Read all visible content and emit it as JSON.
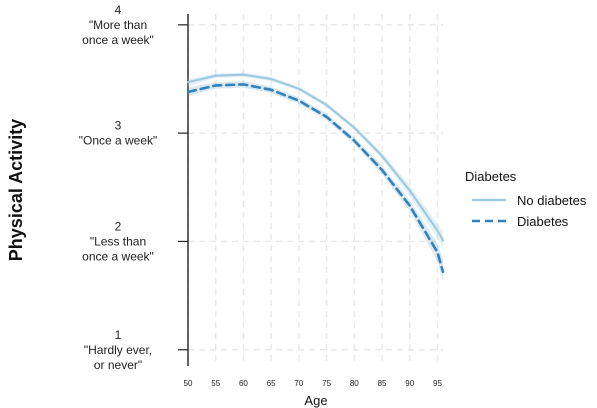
{
  "chart_data": {
    "type": "line",
    "xlabel": "Age",
    "ylabel": "Physical Activity",
    "xlim": [
      50,
      96
    ],
    "ylim": [
      0.85,
      4.1
    ],
    "grid": true,
    "legend_placement": "right",
    "x_ticks": [
      50,
      55,
      60,
      65,
      70,
      75,
      80,
      85,
      90,
      95
    ],
    "x_tick_labels": [
      "50",
      "55",
      "60",
      "65",
      "70",
      "75",
      "80",
      "85",
      "90",
      "95"
    ],
    "y_ticks": [
      {
        "value": 4,
        "lines": [
          "4",
          "\"More than",
          "once a week\""
        ]
      },
      {
        "value": 3,
        "lines": [
          "3",
          "\"Once a week\""
        ]
      },
      {
        "value": 2,
        "lines": [
          "2",
          "\"Less than",
          "once a week\""
        ]
      },
      {
        "value": 1,
        "lines": [
          "1",
          "\"Hardly ever,",
          "or never\""
        ]
      }
    ],
    "legend_title": "Diabetes",
    "series": [
      {
        "name": "No diabetes",
        "style": "solid",
        "color": "#9ecae1",
        "x": [
          50,
          55,
          60,
          65,
          70,
          75,
          80,
          85,
          90,
          95,
          96
        ],
        "y": [
          3.47,
          3.53,
          3.54,
          3.5,
          3.41,
          3.26,
          3.05,
          2.79,
          2.47,
          2.1,
          2.01
        ],
        "band_upper": [
          3.5,
          3.55,
          3.56,
          3.52,
          3.43,
          3.28,
          3.07,
          2.82,
          2.52,
          2.17,
          2.09
        ],
        "band_lower": [
          3.43,
          3.51,
          3.52,
          3.48,
          3.39,
          3.24,
          3.03,
          2.76,
          2.42,
          2.03,
          1.93
        ]
      },
      {
        "name": "Diabetes",
        "style": "dashed",
        "color": "#3182bd",
        "x": [
          50,
          55,
          60,
          65,
          70,
          75,
          80,
          85,
          90,
          95,
          96
        ],
        "y": [
          3.38,
          3.44,
          3.45,
          3.4,
          3.3,
          3.15,
          2.93,
          2.66,
          2.33,
          1.9,
          1.72
        ],
        "band_upper": [
          3.42,
          3.47,
          3.48,
          3.43,
          3.33,
          3.18,
          2.96,
          2.7,
          2.38,
          1.98,
          1.84
        ],
        "band_lower": [
          3.34,
          3.41,
          3.42,
          3.37,
          3.27,
          3.12,
          2.9,
          2.62,
          2.28,
          1.82,
          1.64
        ]
      }
    ]
  }
}
